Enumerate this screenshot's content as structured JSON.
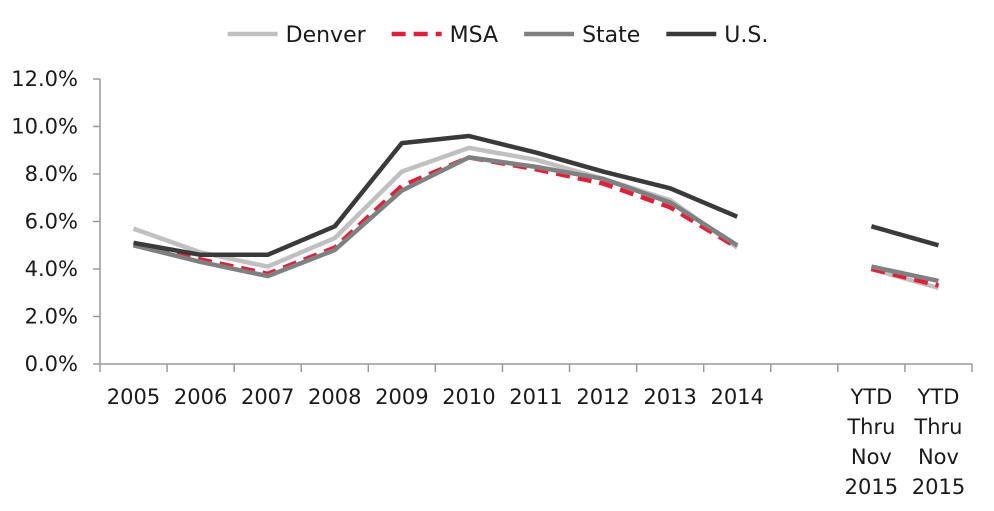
{
  "chart_data": {
    "type": "line",
    "title": "",
    "xlabel": "",
    "ylabel": "",
    "categories": [
      [
        "2005"
      ],
      [
        "2006"
      ],
      [
        "2007"
      ],
      [
        "2008"
      ],
      [
        "2009"
      ],
      [
        "2010"
      ],
      [
        "2011"
      ],
      [
        "2012"
      ],
      [
        "2013"
      ],
      [
        "2014"
      ],
      [],
      [
        "YTD",
        "Thru",
        "Nov",
        "2015"
      ],
      [
        "YTD",
        "Thru",
        "Nov",
        "2015"
      ]
    ],
    "ylim": [
      0,
      12
    ],
    "yticks": [
      {
        "value": 0,
        "label": "0.0%"
      },
      {
        "value": 2,
        "label": "2.0%"
      },
      {
        "value": 4,
        "label": "4.0%"
      },
      {
        "value": 6,
        "label": "6.0%"
      },
      {
        "value": 8,
        "label": "8.0%"
      },
      {
        "value": 10,
        "label": "10.0%"
      },
      {
        "value": 12,
        "label": "12.0%"
      }
    ],
    "grid": false,
    "legend_position": "top-center",
    "series": [
      {
        "name": "Denver",
        "color": "#c0c0c0",
        "dash": "solid",
        "values": [
          5.7,
          4.7,
          4.1,
          5.3,
          8.1,
          9.1,
          8.6,
          7.8,
          6.9,
          4.9,
          null,
          4.0,
          3.2
        ]
      },
      {
        "name": "MSA",
        "color": "#e0203a",
        "dash": "dashed",
        "values": [
          5.0,
          4.4,
          3.8,
          4.9,
          7.5,
          8.7,
          8.2,
          7.6,
          6.6,
          4.9,
          null,
          4.0,
          3.3
        ]
      },
      {
        "name": "State",
        "color": "#808080",
        "dash": "solid",
        "values": [
          5.0,
          4.3,
          3.7,
          4.8,
          7.3,
          8.7,
          8.3,
          7.8,
          6.8,
          5.0,
          null,
          4.1,
          3.5
        ]
      },
      {
        "name": "U.S.",
        "color": "#3a3a3a",
        "dash": "solid",
        "values": [
          5.1,
          4.6,
          4.6,
          5.8,
          9.3,
          9.6,
          8.9,
          8.1,
          7.4,
          6.2,
          null,
          5.8,
          5.0
        ]
      }
    ]
  }
}
